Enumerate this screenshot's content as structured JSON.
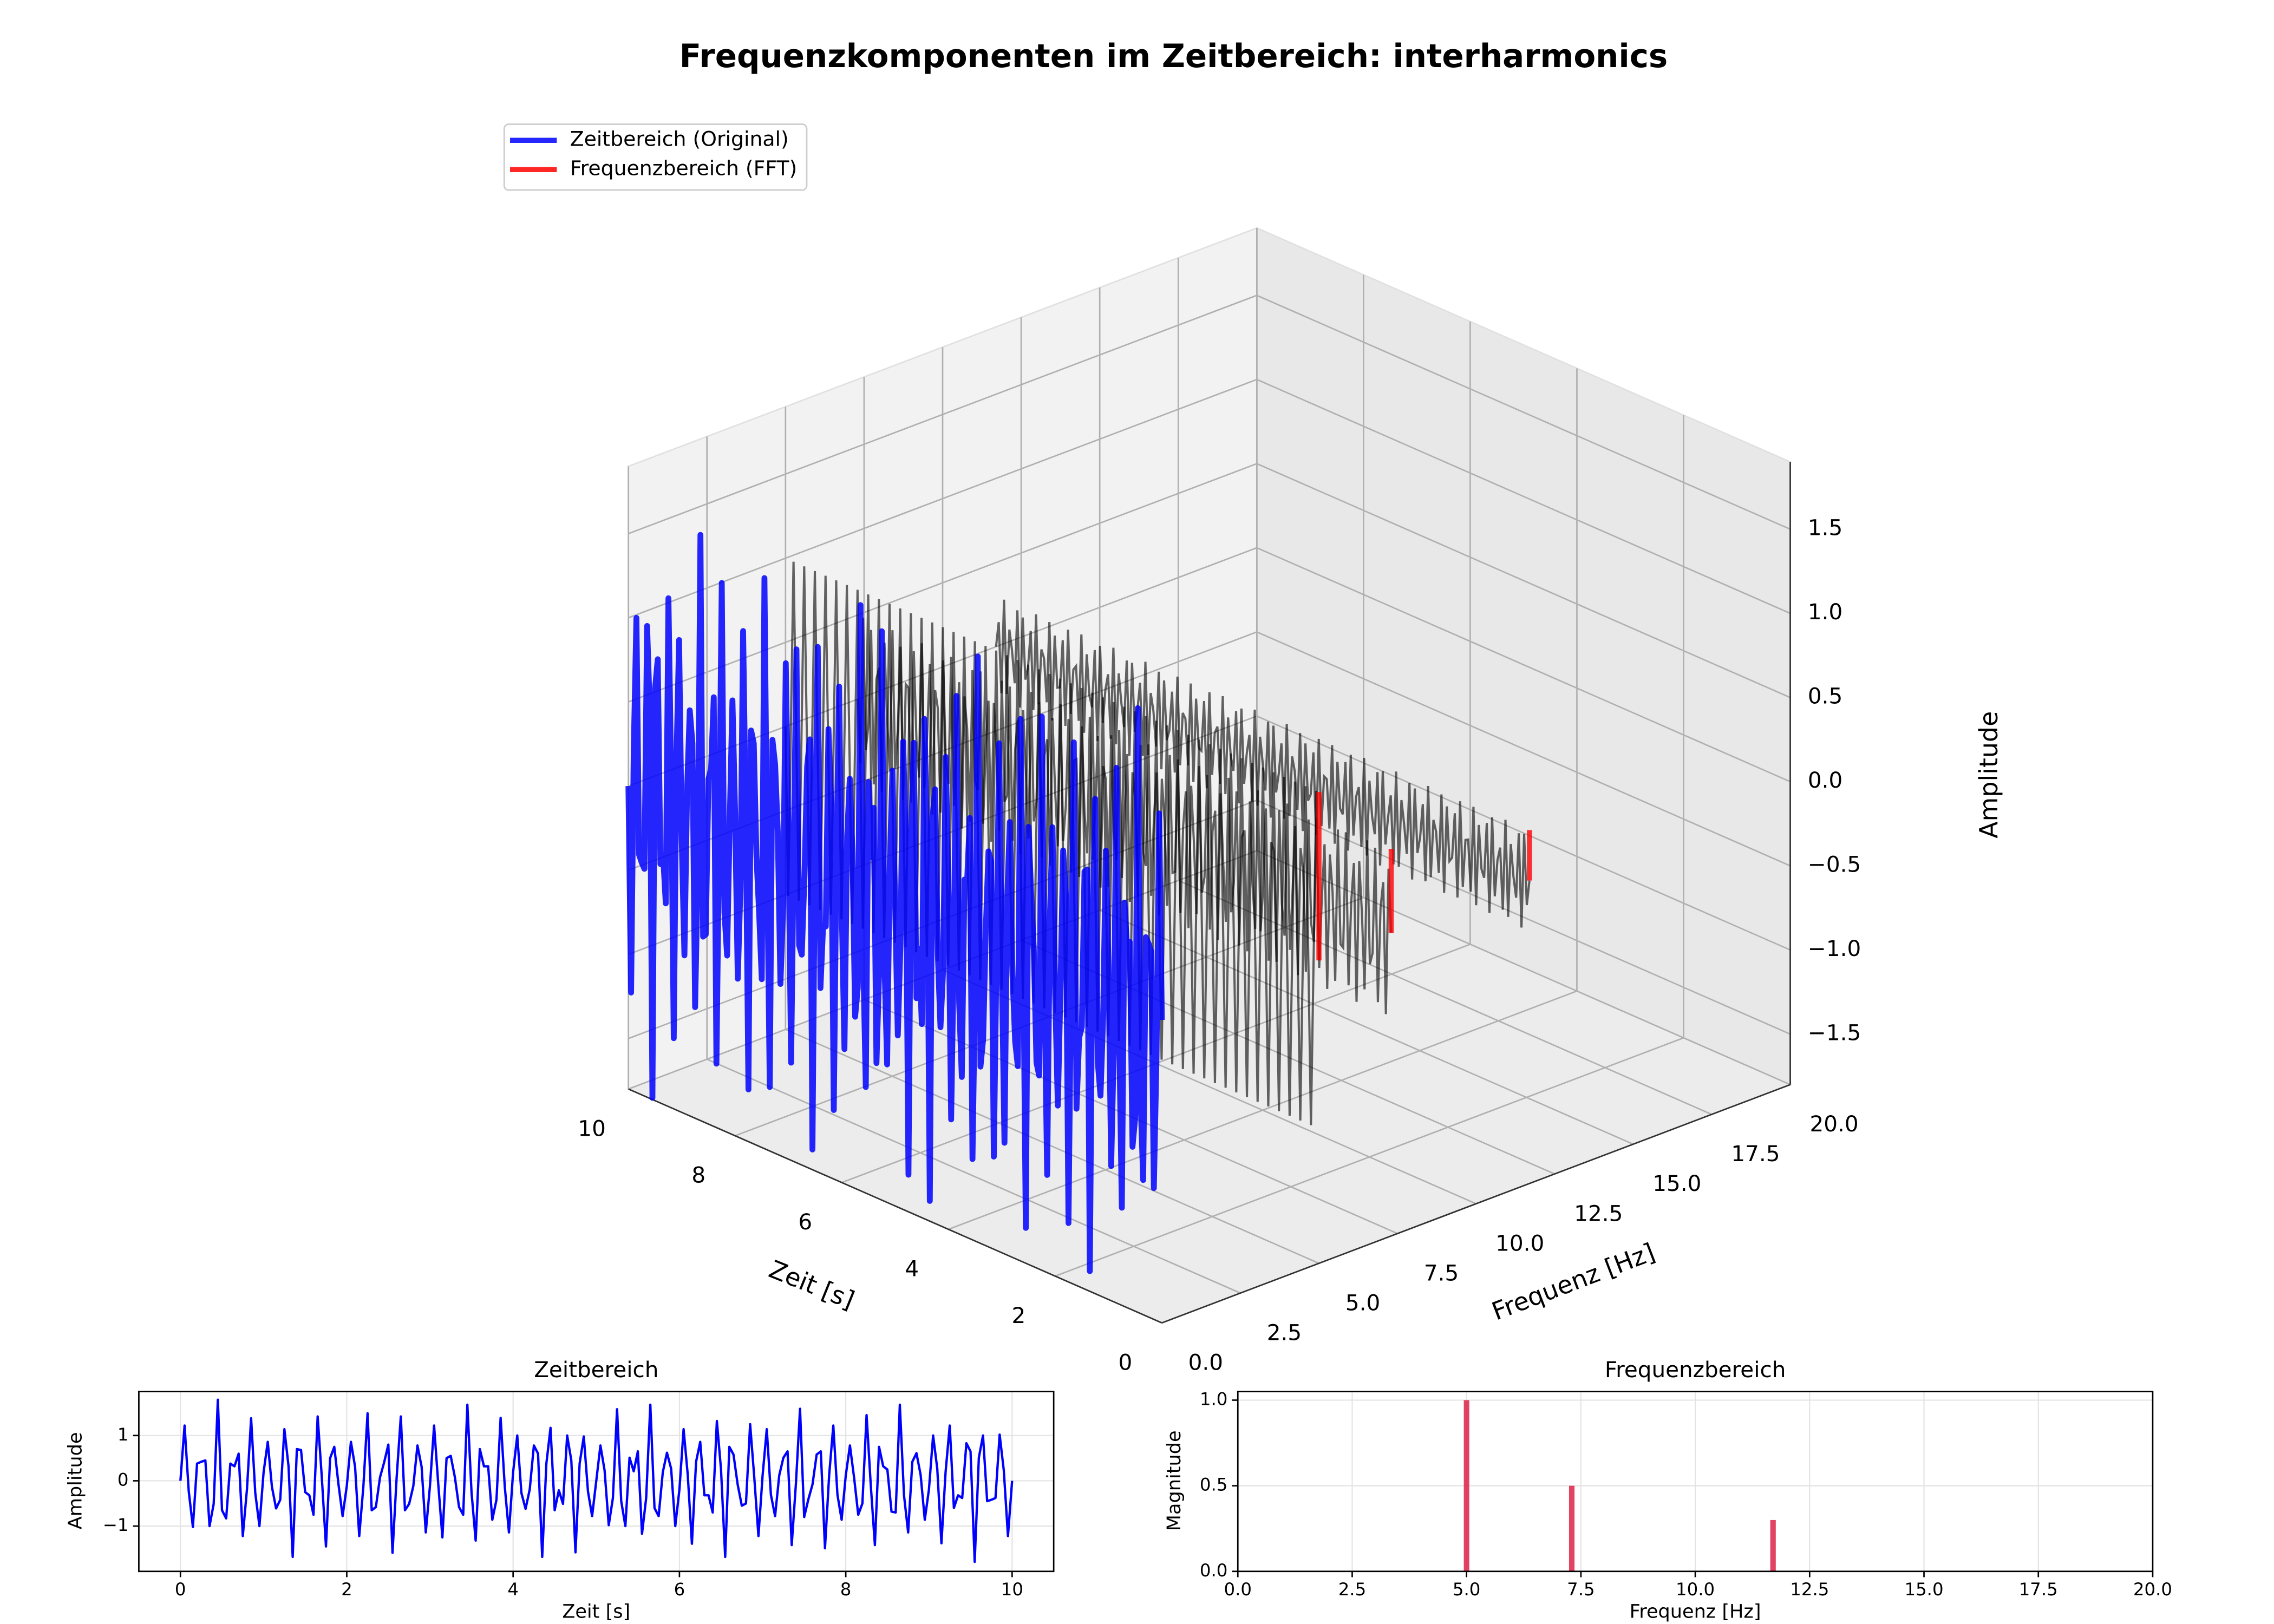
{
  "chart_data": [
    {
      "type": "line3d",
      "title": "Frequenzkomponenten im Zeitbereich: interharmonics",
      "xlabel": "Zeit [s]",
      "ylabel": "Frequenz [Hz]",
      "zlabel": "Amplitude",
      "xlim": [
        0,
        10
      ],
      "xticks": [
        0,
        2,
        4,
        6,
        8,
        10
      ],
      "ylim": [
        0,
        20
      ],
      "yticks": [
        {
          "value": 0,
          "label": "0.0"
        },
        {
          "value": 2.5,
          "label": "2.5"
        },
        {
          "value": 5,
          "label": "5.0"
        },
        {
          "value": 7.5,
          "label": "7.5"
        },
        {
          "value": 10,
          "label": "10.0"
        },
        {
          "value": 12.5,
          "label": "12.5"
        },
        {
          "value": 15,
          "label": "15.0"
        },
        {
          "value": 17.5,
          "label": "17.5"
        },
        {
          "value": 20,
          "label": "20.0"
        }
      ],
      "zlim": [
        -1.8,
        1.9
      ],
      "zticks": [
        {
          "value": -1.5,
          "label": "−1.5"
        },
        {
          "value": -1,
          "label": "−1.0"
        },
        {
          "value": -0.5,
          "label": "−0.5"
        },
        {
          "value": 0,
          "label": "0.0"
        },
        {
          "value": 0.5,
          "label": "0.5"
        },
        {
          "value": 1,
          "label": "1.0"
        },
        {
          "value": 1.5,
          "label": "1.5"
        }
      ],
      "component_color": "#000000",
      "legend": [
        {
          "name": "Zeitbereich (Original)",
          "color": "#0000ff"
        },
        {
          "name": "Frequenzbereich (FFT)",
          "color": "#ff0000"
        }
      ],
      "legend_loc": "upper left",
      "grid": true
    },
    {
      "type": "line",
      "title": "Zeitbereich",
      "xlabel": "Zeit [s]",
      "ylabel": "Amplitude",
      "x": [
        0,
        0.05,
        0.1,
        0.15,
        0.2,
        0.25,
        0.3,
        0.35,
        0.4,
        0.45,
        0.5,
        0.55,
        0.6,
        0.65,
        0.7,
        0.75,
        0.8,
        0.85,
        0.9,
        0.95,
        1,
        1.05,
        1.1,
        1.15,
        1.2,
        1.25,
        1.3,
        1.35,
        1.4,
        1.45,
        1.5,
        1.55,
        1.6,
        1.65,
        1.7,
        1.75,
        1.8,
        1.85,
        1.9,
        1.95,
        2,
        2.05,
        2.1,
        2.15,
        2.2,
        2.25,
        2.3,
        2.35,
        2.4,
        2.45,
        2.5,
        2.55,
        2.6,
        2.65,
        2.7,
        2.75,
        2.8,
        2.85,
        2.9,
        2.95,
        3,
        3.05,
        3.1,
        3.15,
        3.2,
        3.25,
        3.3,
        3.35,
        3.4,
        3.45,
        3.5,
        3.55,
        3.6,
        3.65,
        3.7,
        3.75,
        3.8,
        3.85,
        3.9,
        3.95,
        4,
        4.05,
        4.1,
        4.15,
        4.2,
        4.25,
        4.3,
        4.35,
        4.4,
        4.45,
        4.5,
        4.55,
        4.6,
        4.65,
        4.7,
        4.75,
        4.8,
        4.85,
        4.9,
        4.95,
        5,
        5.05,
        5.1,
        5.15,
        5.2,
        5.25,
        5.3,
        5.35,
        5.4,
        5.45,
        5.5,
        5.55,
        5.6,
        5.65,
        5.7,
        5.75,
        5.8,
        5.85,
        5.9,
        5.95,
        6,
        6.05,
        6.1,
        6.15,
        6.2,
        6.25,
        6.3,
        6.35,
        6.4,
        6.45,
        6.5,
        6.55,
        6.6,
        6.65,
        6.7,
        6.75,
        6.8,
        6.85,
        6.9,
        6.95,
        7,
        7.05,
        7.1,
        7.15,
        7.2,
        7.25,
        7.3,
        7.35,
        7.4,
        7.45,
        7.5,
        7.55,
        7.6,
        7.65,
        7.7,
        7.75,
        7.8,
        7.85,
        7.9,
        7.95,
        8,
        8.05,
        8.1,
        8.15,
        8.2,
        8.25,
        8.3,
        8.35,
        8.4,
        8.45,
        8.5,
        8.55,
        8.6,
        8.65,
        8.7,
        8.75,
        8.8,
        8.85,
        8.9,
        8.95,
        9,
        9.05,
        9.1,
        9.15,
        9.2,
        9.25,
        9.3,
        9.35,
        9.4,
        9.45,
        9.5,
        9.55,
        9.6,
        9.65,
        9.7,
        9.75,
        9.8,
        9.85,
        9.9,
        9.95,
        10
      ],
      "values": [
        0,
        1.22,
        -0.23,
        -1.02,
        0.38,
        0.42,
        0.45,
        -1.0,
        -0.51,
        1.79,
        -0.65,
        -0.83,
        0.38,
        0.32,
        0.6,
        -1.22,
        -0.19,
        1.38,
        -0.27,
        -1.0,
        0.19,
        0.86,
        -0.13,
        -0.61,
        -0.42,
        1.14,
        0.32,
        -1.68,
        0.7,
        0.68,
        -0.25,
        -0.32,
        -0.75,
        1.42,
        0.08,
        -1.45,
        0.5,
        0.75,
        -0.07,
        -0.78,
        -0.12,
        0.86,
        0.31,
        -1.22,
        -0.12,
        1.49,
        -0.65,
        -0.58,
        0.08,
        0.41,
        0.8,
        -1.59,
        0.08,
        1.42,
        -0.65,
        -0.51,
        -0.12,
        0.78,
        0.31,
        -1.14,
        -0.12,
        1.22,
        -0.07,
        -1.25,
        0.5,
        0.55,
        0.08,
        -0.58,
        -0.75,
        1.68,
        -0.25,
        -1.32,
        0.7,
        0.32,
        0.32,
        -0.86,
        -0.42,
        1.39,
        -0.13,
        -1.14,
        0.19,
        1.0,
        -0.27,
        -0.62,
        -0.19,
        0.78,
        0.6,
        -1.68,
        0.38,
        1.17,
        -0.65,
        -0.21,
        -0.51,
        1.0,
        0.45,
        -1.58,
        0.38,
        0.98,
        -0.23,
        -0.78,
        0,
        0.78,
        0.23,
        -0.98,
        -0.38,
        1.58,
        -0.45,
        -1.0,
        0.51,
        0.21,
        0.65,
        -1.17,
        -0.38,
        1.68,
        -0.6,
        -0.78,
        0.19,
        0.62,
        0.27,
        -1.0,
        -0.19,
        1.14,
        0.13,
        -1.39,
        0.42,
        0.86,
        -0.32,
        -0.32,
        -0.7,
        1.32,
        0.25,
        -1.68,
        0.75,
        0.58,
        -0.08,
        -0.55,
        -0.5,
        1.25,
        0.07,
        -1.22,
        0.12,
        1.14,
        -0.31,
        -0.78,
        0.12,
        0.51,
        0.65,
        -1.42,
        -0.08,
        1.59,
        -0.8,
        -0.41,
        -0.08,
        0.58,
        0.65,
        -1.49,
        0.12,
        1.22,
        -0.31,
        -0.86,
        0.12,
        0.78,
        0.07,
        -0.75,
        -0.5,
        1.45,
        -0.08,
        -1.42,
        0.75,
        0.32,
        0.25,
        -0.68,
        -0.7,
        1.68,
        -0.32,
        -1.14,
        0.42,
        0.61,
        0.13,
        -0.86,
        -0.19,
        1.0,
        0.27,
        -1.38,
        0.19,
        1.22,
        -0.6,
        -0.32,
        -0.38,
        0.83,
        0.65,
        -1.79,
        0.51,
        1.0,
        -0.45,
        -0.42,
        -0.38,
        1.02,
        0.23,
        -1.22,
        0
      ],
      "color": "#0000ff",
      "xlim": [
        -0.5,
        10.5
      ],
      "xticks": [
        0,
        2,
        4,
        6,
        8,
        10
      ],
      "ylim": [
        -2.0,
        1.97
      ],
      "yticks": [
        {
          "value": -1,
          "label": "−1"
        },
        0,
        1
      ],
      "grid": true
    },
    {
      "type": "bar",
      "title": "Frequenzbereich",
      "xlabel": "Frequenz [Hz]",
      "ylabel": "Magnitude",
      "x": [
        5,
        7.3,
        11.7
      ],
      "values": [
        1.0,
        0.5,
        0.3
      ],
      "color": "#dc143c",
      "xlim": [
        0,
        20
      ],
      "xticks": [
        {
          "value": 0,
          "label": "0.0"
        },
        {
          "value": 2.5,
          "label": "2.5"
        },
        {
          "value": 5,
          "label": "5.0"
        },
        {
          "value": 7.5,
          "label": "7.5"
        },
        {
          "value": 10,
          "label": "10.0"
        },
        {
          "value": 12.5,
          "label": "12.5"
        },
        {
          "value": 15,
          "label": "15.0"
        },
        {
          "value": 17.5,
          "label": "17.5"
        },
        {
          "value": 20,
          "label": "20.0"
        }
      ],
      "ylim": [
        0,
        1.05
      ],
      "yticks": [
        {
          "value": 0,
          "label": "0.0"
        },
        {
          "value": 0.5,
          "label": "0.5"
        },
        {
          "value": 1,
          "label": "1.0"
        }
      ],
      "grid": true
    }
  ]
}
